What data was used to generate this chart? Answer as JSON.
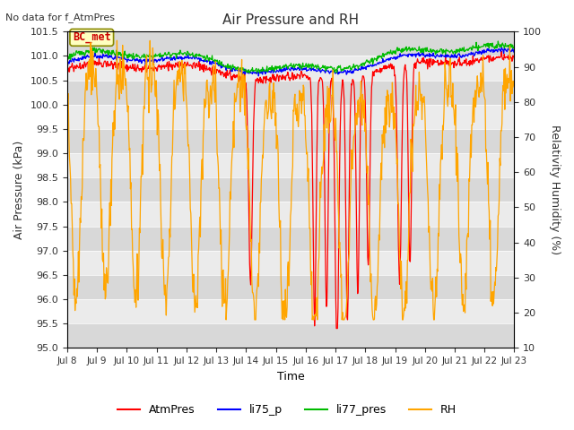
{
  "title": "Air Pressure and RH",
  "top_left_text": "No data for f_AtmPres",
  "box_label": "BC_met",
  "xlabel": "Time",
  "ylabel_left": "Air Pressure (kPa)",
  "ylabel_right": "Relativity Humidity (%)",
  "ylim_left": [
    95.0,
    101.5
  ],
  "ylim_right": [
    10,
    100
  ],
  "yticks_left": [
    95.0,
    95.5,
    96.0,
    96.5,
    97.0,
    97.5,
    98.0,
    98.5,
    99.0,
    99.5,
    100.0,
    100.5,
    101.0,
    101.5
  ],
  "yticks_right": [
    10,
    20,
    30,
    40,
    50,
    60,
    70,
    80,
    90,
    100
  ],
  "x_tick_labels": [
    "Jul 8",
    "Jul 9",
    "Jul 10",
    "Jul 11",
    "Jul 12",
    "Jul 13",
    "Jul 14",
    "Jul 15",
    "Jul 16",
    "Jul 17",
    "Jul 18",
    "Jul 19",
    "Jul 20",
    "Jul 21",
    "Jul 22",
    "Jul 23"
  ],
  "colors": {
    "AtmPres": "#FF0000",
    "li75_p": "#0000FF",
    "li77_pres": "#00BB00",
    "RH": "#FFA500",
    "band_gray": "#DCDCDC",
    "band_white": "#F0F0F0"
  },
  "legend_entries": [
    "AtmPres",
    "li75_p",
    "li77_pres",
    "RH"
  ],
  "figsize": [
    6.4,
    4.8
  ],
  "dpi": 100
}
